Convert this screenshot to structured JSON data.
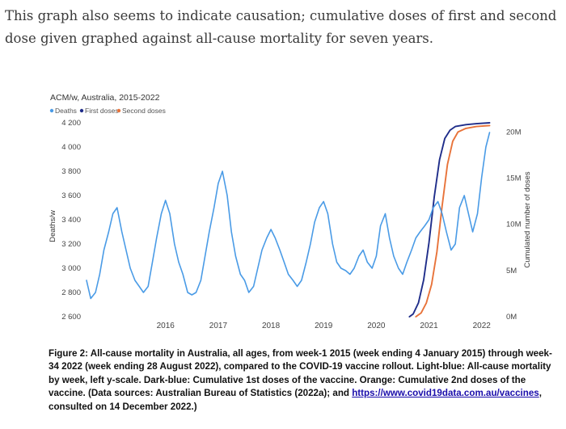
{
  "intro_text": "This graph also seems to indicate causation; cumulative doses of first and second dose given graphed against all-cause mortality for seven years.",
  "caption": {
    "part1": "Figure 2: All-cause mortality in Australia, all ages, from week-1 2015 (week ending 4 January 2015) through week-34 2022 (week ending 28 August 2022), compared to the COVID-19 vaccine rollout. Light-blue: All-cause mortality by week, left y-scale. Dark-blue: Cumulative 1st doses of the vaccine. Orange: Cumulative 2nd doses of the vaccine. (Data sources: Australian Bureau of Statistics (2022a); and ",
    "link": "https://www.covid19data.com.au/vaccines",
    "part2": ", consulted on 14 December 2022.)"
  },
  "chart_data": {
    "type": "line",
    "title": "ACM/w, Australia, 2015-2022",
    "ylabel": "Deaths/w",
    "y2label": "Cumulated number of doses",
    "ylim": [
      2600,
      4200
    ],
    "yticks": [
      2600,
      2800,
      3000,
      3200,
      3400,
      3600,
      3800,
      4000,
      4200
    ],
    "ytick_labels": [
      "2 600",
      "2 800",
      "3 000",
      "3 200",
      "3 400",
      "3 600",
      "3 800",
      "4 000",
      "4 200"
    ],
    "y2lim": [
      0,
      21000000
    ],
    "y2ticks": [
      0,
      5000000,
      10000000,
      15000000,
      20000000
    ],
    "y2tick_labels": [
      "0M",
      "5M",
      "10M",
      "15M",
      "20M"
    ],
    "xlim": [
      2015.0,
      2022.75
    ],
    "xticks": [
      2016,
      2017,
      2018,
      2019,
      2020,
      2021,
      2022
    ],
    "xtick_labels": [
      "2016",
      "2017",
      "2018",
      "2019",
      "2020",
      "2021",
      "2022"
    ],
    "legend_position": "top-left",
    "colors": {
      "deaths": "#4a9be6",
      "first": "#1f2d8a",
      "second": "#e8733a"
    },
    "series": [
      {
        "name": "Deaths",
        "axis": "left",
        "x": [
          2015.0,
          2015.08,
          2015.17,
          2015.25,
          2015.33,
          2015.42,
          2015.5,
          2015.58,
          2015.67,
          2015.75,
          2015.83,
          2015.92,
          2016.0,
          2016.08,
          2016.17,
          2016.25,
          2016.33,
          2016.42,
          2016.5,
          2016.58,
          2016.67,
          2016.75,
          2016.83,
          2016.92,
          2017.0,
          2017.08,
          2017.17,
          2017.25,
          2017.33,
          2017.42,
          2017.5,
          2017.58,
          2017.67,
          2017.75,
          2017.83,
          2017.92,
          2018.0,
          2018.08,
          2018.17,
          2018.25,
          2018.33,
          2018.42,
          2018.5,
          2018.58,
          2018.67,
          2018.75,
          2018.83,
          2018.92,
          2019.0,
          2019.08,
          2019.17,
          2019.25,
          2019.33,
          2019.42,
          2019.5,
          2019.58,
          2019.67,
          2019.75,
          2019.83,
          2019.92,
          2020.0,
          2020.08,
          2020.17,
          2020.25,
          2020.33,
          2020.42,
          2020.5,
          2020.58,
          2020.67,
          2020.75,
          2020.83,
          2020.92,
          2021.0,
          2021.08,
          2021.17,
          2021.25,
          2021.33,
          2021.42,
          2021.5,
          2021.58,
          2021.67,
          2021.75,
          2021.83,
          2021.92,
          2022.0,
          2022.08,
          2022.17,
          2022.25,
          2022.33,
          2022.42,
          2022.5,
          2022.58,
          2022.65
        ],
        "y": [
          2900,
          2750,
          2800,
          2950,
          3150,
          3300,
          3450,
          3500,
          3300,
          3150,
          3000,
          2900,
          2850,
          2800,
          2850,
          3050,
          3250,
          3450,
          3560,
          3450,
          3200,
          3050,
          2950,
          2800,
          2780,
          2800,
          2900,
          3100,
          3300,
          3500,
          3700,
          3800,
          3600,
          3300,
          3100,
          2950,
          2900,
          2800,
          2850,
          3000,
          3150,
          3250,
          3320,
          3250,
          3150,
          3050,
          2950,
          2900,
          2850,
          2900,
          3050,
          3200,
          3380,
          3500,
          3550,
          3450,
          3200,
          3050,
          3000,
          2980,
          2950,
          3000,
          3100,
          3150,
          3050,
          3000,
          3100,
          3350,
          3450,
          3250,
          3100,
          3000,
          2950,
          3050,
          3150,
          3250,
          3300,
          3350,
          3400,
          3500,
          3550,
          3450,
          3300,
          3150,
          3200,
          3500,
          3600,
          3450,
          3300,
          3450,
          3750,
          4000,
          4120
        ]
      },
      {
        "name": "First doses",
        "axis": "right",
        "x": [
          2021.13,
          2021.2,
          2021.3,
          2021.4,
          2021.5,
          2021.6,
          2021.7,
          2021.8,
          2021.9,
          2022.0,
          2022.2,
          2022.4,
          2022.65
        ],
        "y": [
          0,
          300000,
          1500000,
          4000000,
          8000000,
          13000000,
          17000000,
          19300000,
          20200000,
          20600000,
          20800000,
          20900000,
          21000000
        ]
      },
      {
        "name": "Second doses",
        "axis": "right",
        "x": [
          2021.25,
          2021.35,
          2021.45,
          2021.55,
          2021.65,
          2021.75,
          2021.85,
          2021.95,
          2022.05,
          2022.2,
          2022.4,
          2022.65
        ],
        "y": [
          0,
          400000,
          1500000,
          3500000,
          7000000,
          12000000,
          16500000,
          19000000,
          20000000,
          20400000,
          20600000,
          20700000
        ]
      }
    ]
  }
}
